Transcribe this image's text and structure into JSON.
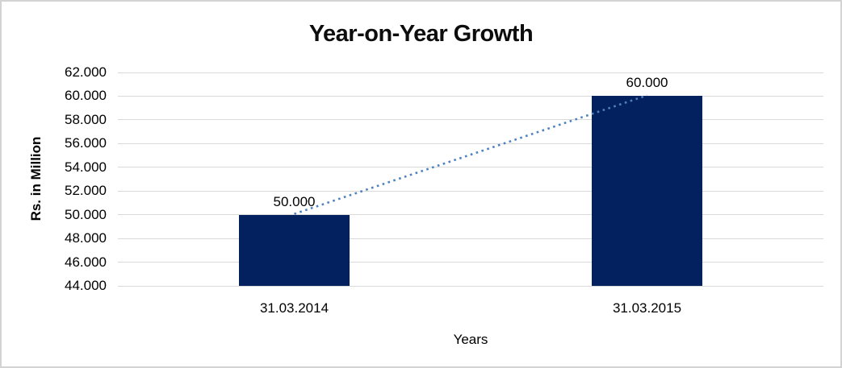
{
  "window": {
    "background": "#FFFFFF",
    "border_color": "#D3D3D3"
  },
  "chart_data": {
    "type": "bar",
    "title": "Year-on-Year Growth",
    "categories": [
      "31.03.2014",
      "31.03.2015"
    ],
    "values": [
      50,
      60
    ],
    "values_text": [
      "50.000",
      "60.000"
    ],
    "xlabel": "Years",
    "ylabel": "Rs. in Million",
    "ylim": [
      44,
      62
    ],
    "ytick_step": 2,
    "yticks": [
      "44.000",
      "46.000",
      "48.000",
      "50.000",
      "52.000",
      "54.000",
      "56.000",
      "58.000",
      "60.000",
      "62.000"
    ],
    "grid": true,
    "legend": "none",
    "bar_color": "#02215E",
    "gridline_color": "#D9D9D9",
    "text_color": "#000000",
    "trendline": {
      "style": "dotted",
      "color": "#4F81BD",
      "from_label": "50.000",
      "to_label": "60.000"
    }
  }
}
